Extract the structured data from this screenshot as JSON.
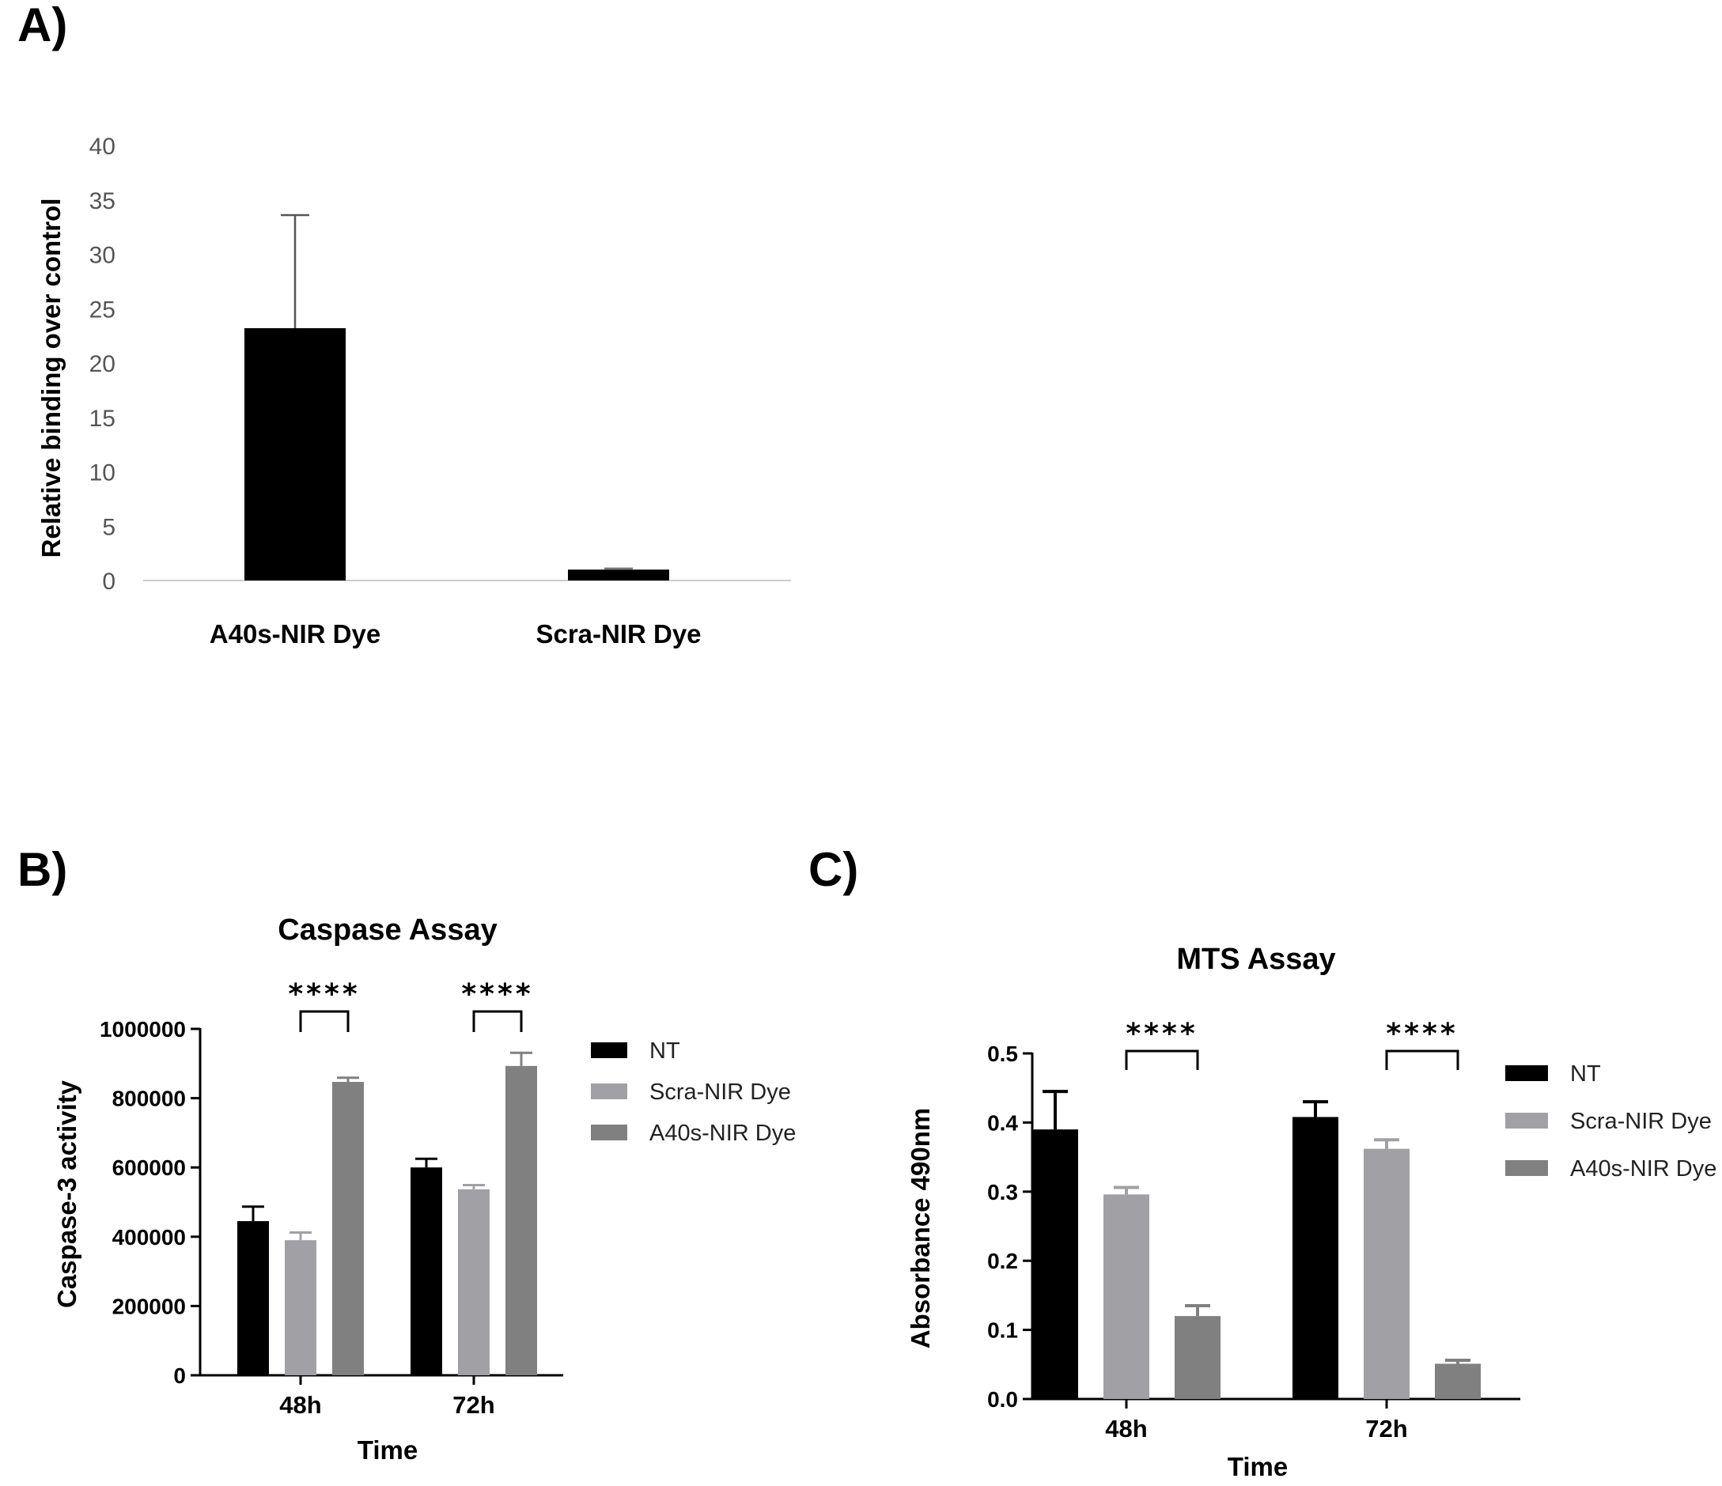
{
  "labels": {
    "a": "A)",
    "b": "B)",
    "c": "C)"
  },
  "chart_data": [
    {
      "id": "A",
      "type": "bar",
      "title": "",
      "xlabel": "",
      "ylabel": "Relative binding over control",
      "categories": [
        "A40s-NIR Dye",
        "Scra-NIR Dye"
      ],
      "values": [
        23.2,
        1.0
      ],
      "errors": [
        10.4,
        0.1
      ],
      "ylim": [
        0,
        40
      ],
      "yticks": [
        "0",
        "5",
        "10",
        "15",
        "20",
        "25",
        "30",
        "35",
        "40"
      ],
      "colors": {
        "bar": "#000000",
        "axis": "#cccccc"
      }
    },
    {
      "id": "B",
      "type": "bar",
      "title": "Caspase Assay",
      "xlabel": "Time",
      "ylabel": "Caspase-3 activity",
      "categories": [
        "48h",
        "72h"
      ],
      "series": [
        {
          "name": "NT",
          "values": [
            445000,
            600000
          ],
          "errors": [
            42000,
            25000
          ],
          "color": "#000000"
        },
        {
          "name": "Scra-NIR Dye",
          "values": [
            390000,
            537000
          ],
          "errors": [
            22000,
            12000
          ],
          "color": "#a1a1a5"
        },
        {
          "name": "A40s-NIR Dye",
          "values": [
            847000,
            893000
          ],
          "errors": [
            12000,
            38000
          ],
          "color": "#808080"
        }
      ],
      "ylim": [
        0,
        1000000
      ],
      "yticks": [
        "0",
        "200000",
        "400000",
        "600000",
        "800000",
        "1000000"
      ],
      "significance": [
        "****",
        "****"
      ]
    },
    {
      "id": "C",
      "type": "bar",
      "title": "MTS Assay",
      "xlabel": "Time",
      "ylabel": "Absorbance 490nm",
      "categories": [
        "48h",
        "72h"
      ],
      "series": [
        {
          "name": "NT",
          "values": [
            0.39,
            0.408
          ],
          "errors": [
            0.055,
            0.022
          ],
          "color": "#000000"
        },
        {
          "name": "Scra-NIR Dye",
          "values": [
            0.296,
            0.362
          ],
          "errors": [
            0.01,
            0.013
          ],
          "color": "#a1a1a5"
        },
        {
          "name": "A40s-NIR Dye",
          "values": [
            0.12,
            0.051
          ],
          "errors": [
            0.015,
            0.005
          ],
          "color": "#808080"
        }
      ],
      "ylim": [
        0,
        0.5
      ],
      "yticks": [
        "0.0",
        "0.1",
        "0.2",
        "0.3",
        "0.4",
        "0.5"
      ],
      "significance": [
        "****",
        "****"
      ]
    }
  ]
}
